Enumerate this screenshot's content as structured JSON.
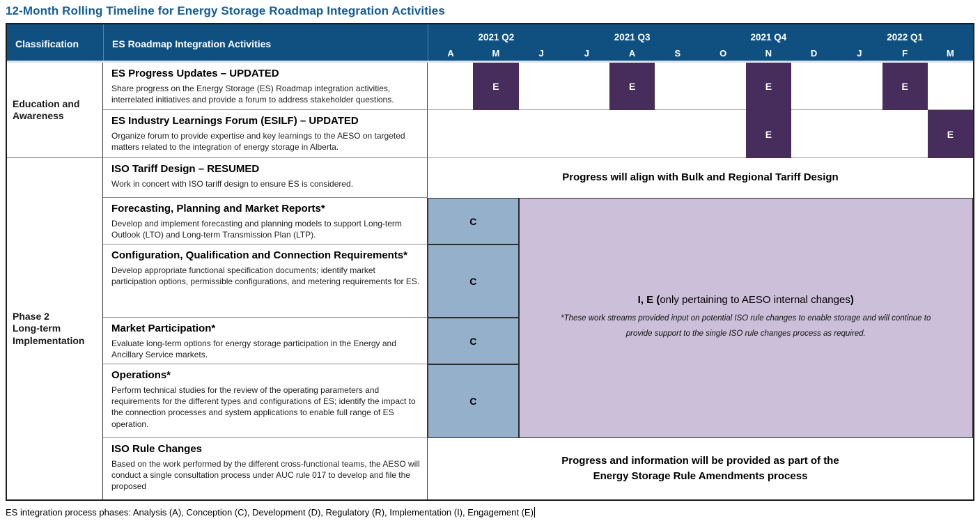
{
  "title": "12-Month Rolling Timeline for Energy Storage Roadmap Integration Activities",
  "header": {
    "classification": "Classification",
    "activities": "ES Roadmap Integration Activities",
    "quarters": [
      "2021 Q2",
      "2021 Q3",
      "2021 Q4",
      "2022 Q1"
    ],
    "months": [
      "A",
      "M",
      "J",
      "J",
      "A",
      "S",
      "O",
      "N",
      "D",
      "J",
      "F",
      "M"
    ]
  },
  "classifications": [
    {
      "label": "Education and Awareness"
    },
    {
      "label": "Phase 2\nLong-term\nImplementation"
    }
  ],
  "activities": [
    {
      "title": "ES Progress Updates – UPDATED",
      "description": "Share progress on the Energy Storage (ES) Roadmap integration activities, interrelated initiatives and provide a forum to address stakeholder questions.",
      "marks": [
        {
          "month": "M",
          "phase": "E"
        },
        {
          "month": "A",
          "phase": "E"
        },
        {
          "month": "N",
          "phase": "E"
        },
        {
          "month": "F",
          "phase": "E"
        }
      ]
    },
    {
      "title": "ES Industry Learnings Forum (ESILF) – UPDATED",
      "description": "Organize forum to provide expertise and key learnings to the AESO on targeted matters related to the integration of energy storage in Alberta.",
      "marks": [
        {
          "month": "N",
          "phase": "E"
        },
        {
          "month": "M",
          "phase": "E"
        }
      ]
    },
    {
      "title": "ISO Tariff Design – RESUMED",
      "description": "Work in concert with ISO tariff design to ensure ES is considered.",
      "timeline_note": "Progress will align with Bulk and Regional Tariff Design"
    },
    {
      "title": "Forecasting, Planning and Market Reports*",
      "description": "Develop and implement forecasting and planning models to support Long-term Outlook (LTO) and Long-term Transmission Plan (LTP).",
      "marks": [
        {
          "month": "A–M",
          "phase": "C"
        }
      ]
    },
    {
      "title": "Configuration, Qualification and Connection Requirements*",
      "description": "Develop appropriate functional specification documents; identify market participation options, permissible configurations, and metering requirements for ES.",
      "marks": [
        {
          "month": "A–M",
          "phase": "C"
        }
      ]
    },
    {
      "title": "Market Participation*",
      "description": "Evaluate long-term options for energy storage participation in the Energy and Ancillary Service markets.",
      "marks": [
        {
          "month": "A–M",
          "phase": "C"
        }
      ]
    },
    {
      "title": "Operations*",
      "description": "Perform technical studies for the review of the operating parameters and requirements for the different types and configurations of ES; identify the impact to the connection processes and system applications to enable full range of ES operation.",
      "marks": [
        {
          "month": "A–M",
          "phase": "C"
        }
      ]
    },
    {
      "title": "ISO Rule Changes",
      "description": "Based on the work performed by the different cross-functional teams, the AESO will conduct a single consultation process under AUC rule 017 to develop and file the proposed",
      "timeline_note": "Progress and information will be provided as part of the\nEnergy Storage Rule Amendments process"
    }
  ],
  "shared_region": {
    "bold_prefix": "I, E (",
    "mid": "only pertaining to AESO internal changes",
    "bold_suffix": ")",
    "note": "*These work streams provided input on potential ISO rule changes to enable storage and will continue to provide support to the single ISO rule changes process as required."
  },
  "legend": {
    "text": "ES integration process phases: Analysis (A), Conception (C), Development (D), Regulatory (R), Implementation (I), Engagement (E)"
  },
  "colors": {
    "header_bg": "#105081",
    "engagement_cell": "#462d5c",
    "conception_cell": "#95b0cb",
    "shared_region_bg": "#cbbfda",
    "title_text": "#135b96"
  }
}
